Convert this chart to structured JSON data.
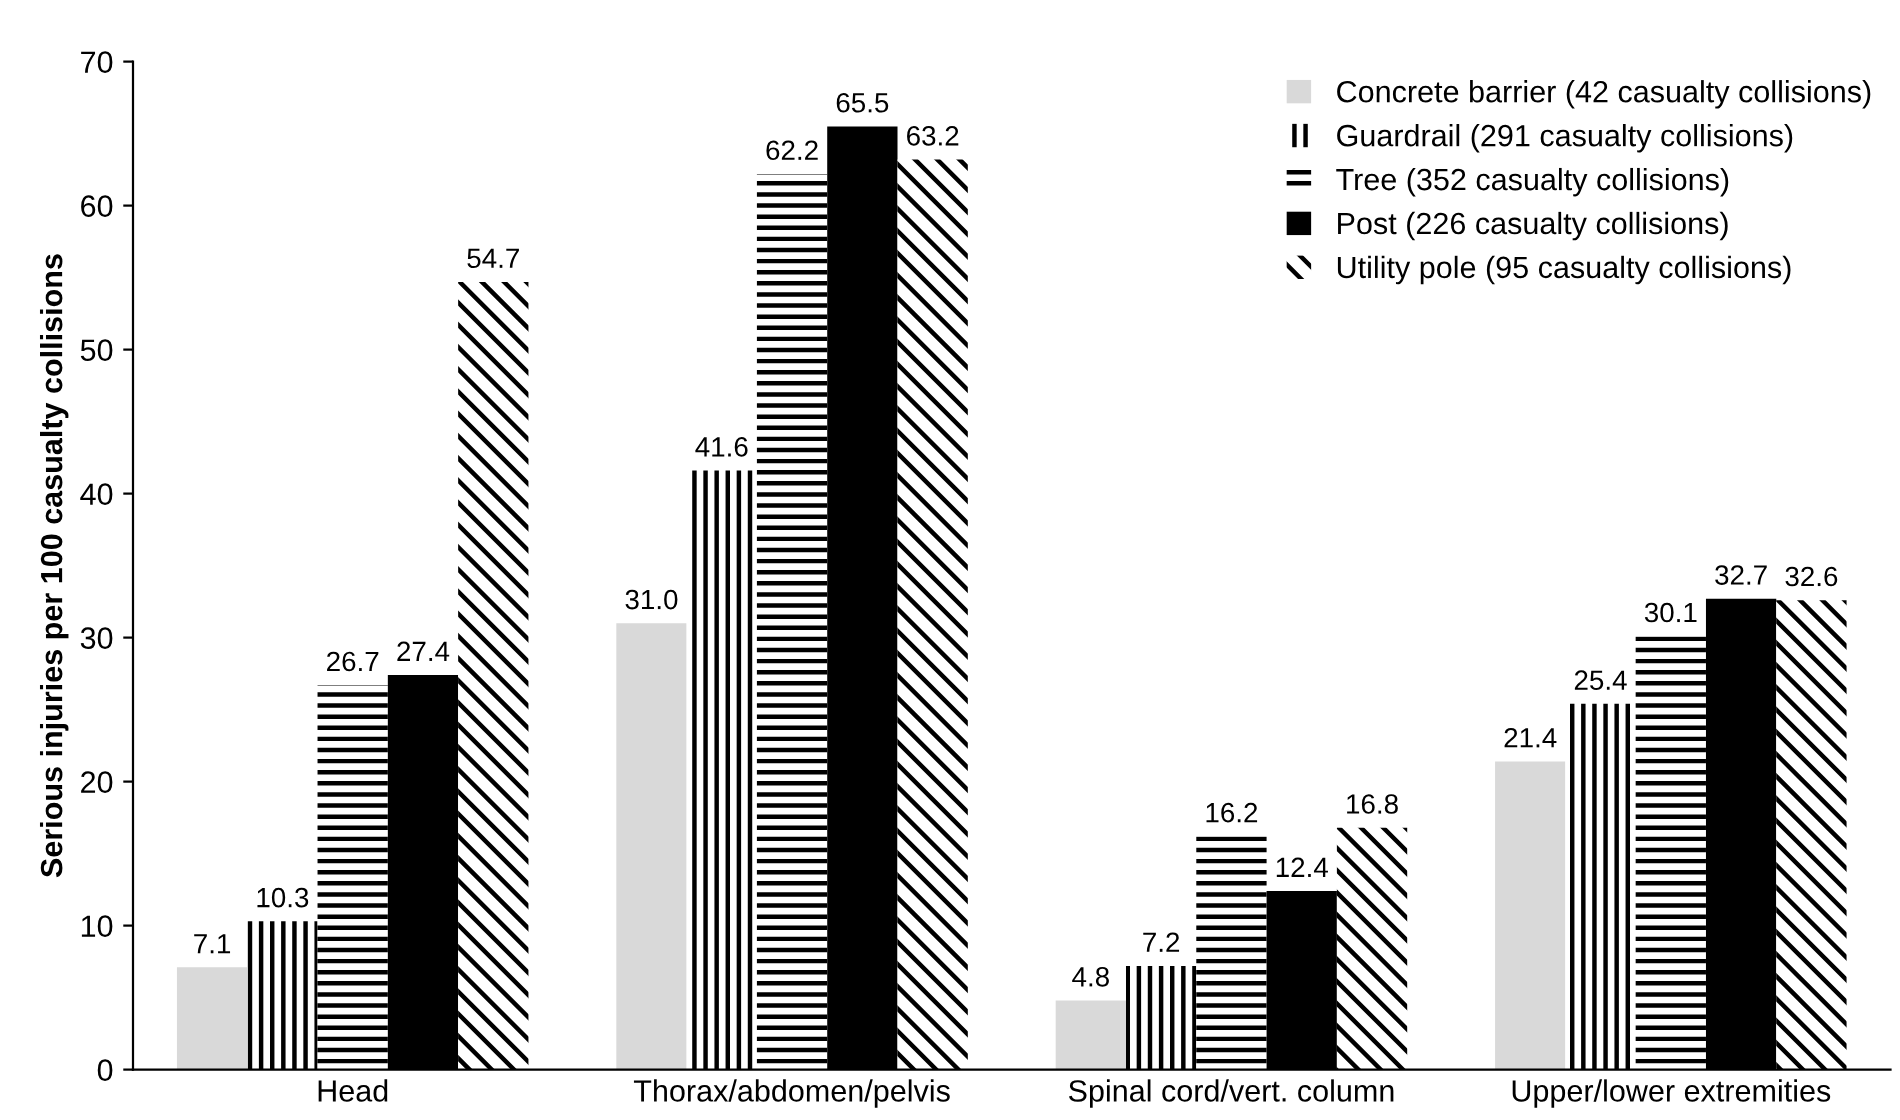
{
  "chart_data": {
    "type": "bar",
    "ylabel": "Serious injuries per 100 casualty collisions",
    "categories": [
      "Head",
      "Thorax/abdomen/pelvis",
      "Spinal cord/vert. column",
      "Upper/lower extremities"
    ],
    "series": [
      {
        "name": "Concrete barrier (42 casualty collisions)",
        "color": "#d9d9d9",
        "values": [
          7.1,
          31.0,
          4.8,
          21.4
        ],
        "value_labels": [
          "7.1",
          "31.0",
          "4.8",
          "21.4"
        ]
      },
      {
        "name": "Guardrail (291 casualty collisions)",
        "color": "#ffffff",
        "values": [
          10.3,
          41.6,
          7.2,
          25.4
        ],
        "value_labels": [
          "10.3",
          "41.6",
          "7.2",
          "25.4"
        ]
      },
      {
        "name": "Tree (352 casualty collisions)",
        "color": "#ffffff",
        "values": [
          26.7,
          62.2,
          16.2,
          30.1
        ],
        "value_labels": [
          "26.7",
          "62.2",
          "16.2",
          "30.1"
        ]
      },
      {
        "name": "Post (226 casualty collisions)",
        "color": "#000000",
        "values": [
          27.4,
          65.5,
          12.4,
          32.7
        ],
        "value_labels": [
          "27.4",
          "65.5",
          "12.4",
          "32.7"
        ]
      },
      {
        "name": "Utility pole (95 casualty collisions)",
        "color": "#ffffff",
        "values": [
          54.7,
          63.2,
          16.8,
          32.6
        ],
        "value_labels": [
          "54.7",
          "63.2",
          "16.8",
          "32.6"
        ]
      }
    ],
    "ylim": [
      0,
      70
    ],
    "yticks": [
      0,
      10,
      20,
      30,
      40,
      50,
      60,
      70
    ],
    "grid": false,
    "legend": "top right"
  }
}
